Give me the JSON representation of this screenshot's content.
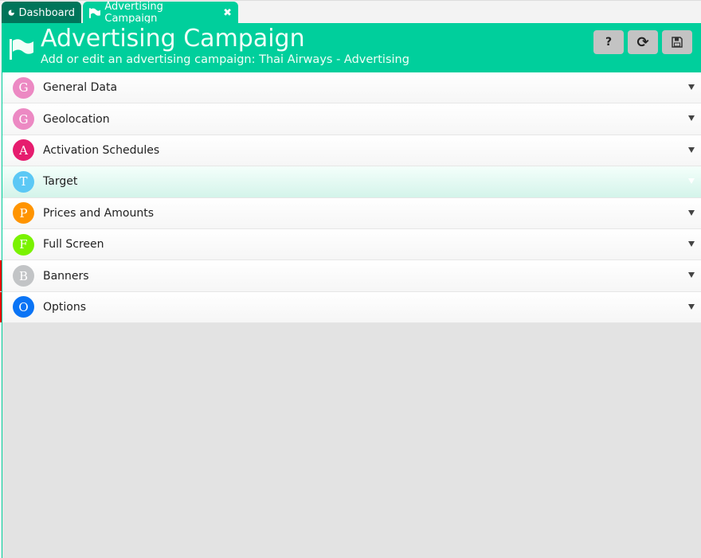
{
  "tabs": [
    {
      "label": "Dashboard",
      "icon": "pie-chart-icon"
    },
    {
      "label": "Advertising Campaign",
      "icon": "flag-icon",
      "close": "✖"
    }
  ],
  "header": {
    "title": "Advertising Campaign",
    "subtitle": "Add or edit an advertising campaign: Thai Airways - Advertising",
    "buttons": {
      "help": "?",
      "refresh": "⟳",
      "save": "save-icon"
    }
  },
  "sections": [
    {
      "letter": "G",
      "label": "General Data",
      "color": "#ec89c3"
    },
    {
      "letter": "G",
      "label": "Geolocation",
      "color": "#ec89c3"
    },
    {
      "letter": "A",
      "label": "Activation Schedules",
      "color": "#e61c6e"
    },
    {
      "letter": "T",
      "label": "Target",
      "color": "#5bc8f5"
    },
    {
      "letter": "P",
      "label": "Prices and Amounts",
      "color": "#ff9400"
    },
    {
      "letter": "F",
      "label": "Full Screen",
      "color": "#7af200"
    },
    {
      "letter": "B",
      "label": "Banners",
      "color": "#c2c4c6"
    },
    {
      "letter": "O",
      "label": "Options",
      "color": "#0a74f5"
    }
  ],
  "colors": {
    "accent": "#00cf9c",
    "dark_tab": "#00755a"
  }
}
